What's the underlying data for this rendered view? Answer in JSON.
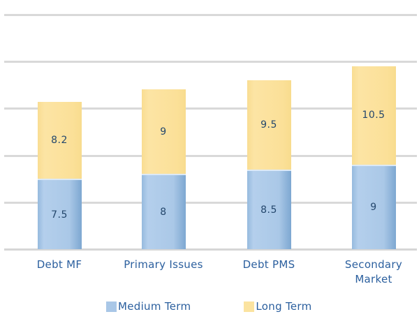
{
  "chart_data": {
    "type": "bar",
    "variant": "stacked-column",
    "categories": [
      "Debt MF",
      "Primary Issues",
      "Debt PMS",
      "Secondary Market"
    ],
    "series": [
      {
        "name": "Medium Term",
        "values": [
          7.5,
          8,
          8.5,
          9
        ],
        "color": "#A9C7E7"
      },
      {
        "name": "Long Term",
        "values": [
          8.2,
          9,
          9.5,
          10.5
        ],
        "color": "#FBE3A0"
      }
    ],
    "value_labels": {
      "Medium Term": [
        "7.5",
        "8",
        "8.5",
        "9"
      ],
      "Long Term": [
        "8.2",
        "9",
        "9.5",
        "10.5"
      ]
    },
    "ylim": [
      0,
      25
    ],
    "gridline_values": [
      0,
      5,
      10,
      15,
      20,
      25
    ],
    "grid": true,
    "y_tick_labels_visible": false,
    "legend_position": "bottom",
    "data_labels": "inside-center",
    "colors": {
      "background": "#FFFFFF",
      "gridline": "#D9D9D9",
      "medium_term_fill": "#A9C7E7",
      "long_term_fill": "#FBE19B",
      "data_label_text": "#24476C",
      "category_label_text": "#2B5F9E",
      "legend_text": "#2B5F9E"
    }
  },
  "legend": {
    "items": [
      {
        "label": "Medium Term"
      },
      {
        "label": "Long Term"
      }
    ]
  }
}
